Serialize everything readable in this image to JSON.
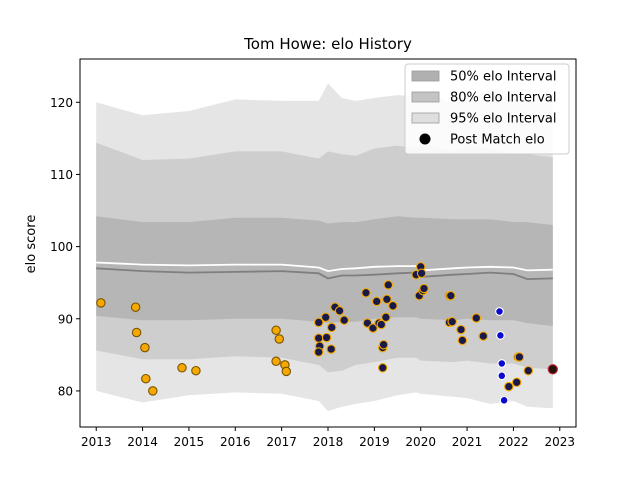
{
  "chart_data": {
    "type": "scatter",
    "title": "Tom Howe: elo History",
    "xlabel": "",
    "ylabel": "elo score",
    "xlim": [
      2012.65,
      2023.35
    ],
    "ylim": [
      75,
      126
    ],
    "x_ticks": [
      {
        "value": 2013,
        "label": "2013"
      },
      {
        "value": 2014,
        "label": "2014"
      },
      {
        "value": 2015,
        "label": "2015"
      },
      {
        "value": 2016,
        "label": "2016"
      },
      {
        "value": 2017,
        "label": "2017"
      },
      {
        "value": 2018,
        "label": "2018"
      },
      {
        "value": 2019,
        "label": "2019"
      },
      {
        "value": 2020,
        "label": "2020"
      },
      {
        "value": 2021,
        "label": "2021"
      },
      {
        "value": 2022,
        "label": "2022"
      },
      {
        "value": 2023,
        "label": "2023"
      }
    ],
    "y_ticks": [
      {
        "value": 80,
        "label": "80"
      },
      {
        "value": 90,
        "label": "90"
      },
      {
        "value": 100,
        "label": "100"
      },
      {
        "value": 110,
        "label": "110"
      },
      {
        "value": 120,
        "label": "120"
      }
    ],
    "grid": false,
    "legend": {
      "position": "top-right",
      "entries": [
        {
          "label": "50% elo Interval",
          "kind": "patch",
          "color": "#b0b0b0"
        },
        {
          "label": "80% elo Interval",
          "kind": "patch",
          "color": "#c4c4c4"
        },
        {
          "label": "95% elo Interval",
          "kind": "patch",
          "color": "#dfdfdf"
        },
        {
          "label": "Post Match elo",
          "kind": "marker",
          "color": "#000000"
        }
      ]
    },
    "colors": {
      "band_95": "#e5e5e5",
      "band_80": "#cecece",
      "band_50": "#b6b6b6",
      "median_line": "#7f7f7f",
      "mean_line": "#ffffff",
      "point_fill_a": "#f5a800",
      "point_fill_b": "#1a1a4a",
      "point_edge": "#c98a00",
      "point_blue": "#0a0ad0",
      "point_last": "#c0282e"
    },
    "bands": {
      "x": [
        2013.0,
        2014.0,
        2015.0,
        2016.0,
        2017.0,
        2017.8,
        2018.0,
        2018.3,
        2018.6,
        2019.0,
        2019.5,
        2019.9,
        2020.0,
        2020.7,
        2021.0,
        2021.5,
        2022.0,
        2022.3,
        2022.85
      ],
      "p95_upper": [
        120.0,
        118.2,
        118.8,
        120.4,
        120.2,
        120.2,
        122.6,
        120.6,
        120.2,
        120.6,
        121.0,
        120.8,
        121.6,
        119.8,
        120.8,
        121.4,
        120.6,
        120.4,
        121.2
      ],
      "p95_lower": [
        80.0,
        78.4,
        79.4,
        79.8,
        79.6,
        78.6,
        77.2,
        77.8,
        78.2,
        78.6,
        79.4,
        79.8,
        79.6,
        79.2,
        79.0,
        78.2,
        78.6,
        77.8,
        77.6
      ],
      "p80_upper": [
        114.4,
        112.0,
        112.2,
        113.2,
        113.2,
        112.2,
        113.2,
        112.8,
        112.6,
        113.6,
        114.0,
        113.6,
        114.2,
        113.2,
        113.8,
        113.6,
        112.8,
        112.8,
        112.4
      ],
      "p80_lower": [
        85.6,
        84.4,
        84.4,
        84.8,
        84.6,
        83.6,
        82.6,
        82.8,
        83.6,
        84.0,
        84.6,
        84.6,
        84.2,
        84.0,
        84.2,
        83.8,
        83.8,
        83.2,
        83.0
      ],
      "p50_upper": [
        104.2,
        103.4,
        103.4,
        104.0,
        104.0,
        103.6,
        103.2,
        103.4,
        103.4,
        103.8,
        104.2,
        104.0,
        104.0,
        103.8,
        103.8,
        103.8,
        103.4,
        103.4,
        103.0
      ],
      "p50_lower": [
        90.4,
        89.8,
        89.8,
        90.0,
        90.0,
        89.6,
        89.4,
        89.6,
        89.6,
        90.0,
        90.2,
        90.2,
        90.0,
        89.8,
        90.0,
        89.8,
        89.8,
        89.4,
        89.0
      ],
      "median": [
        97.0,
        96.6,
        96.4,
        96.5,
        96.6,
        96.3,
        95.6,
        96.0,
        96.0,
        96.1,
        96.3,
        96.4,
        95.8,
        96.1,
        96.2,
        96.4,
        96.2,
        95.5,
        95.6
      ],
      "mean": [
        97.8,
        97.5,
        97.4,
        97.5,
        97.5,
        97.1,
        96.6,
        96.9,
        97.0,
        97.2,
        97.3,
        97.3,
        96.7,
        97.0,
        97.1,
        97.2,
        97.1,
        96.7,
        96.8
      ]
    },
    "points": [
      {
        "x": 2013.1,
        "y": 92.2,
        "group": "a"
      },
      {
        "x": 2013.85,
        "y": 91.6,
        "group": "a"
      },
      {
        "x": 2013.87,
        "y": 88.1,
        "group": "a"
      },
      {
        "x": 2014.05,
        "y": 86.0,
        "group": "a"
      },
      {
        "x": 2014.07,
        "y": 81.7,
        "group": "a"
      },
      {
        "x": 2014.22,
        "y": 80.0,
        "group": "a"
      },
      {
        "x": 2014.85,
        "y": 83.2,
        "group": "a"
      },
      {
        "x": 2015.15,
        "y": 82.8,
        "group": "a"
      },
      {
        "x": 2016.88,
        "y": 88.4,
        "group": "a"
      },
      {
        "x": 2016.95,
        "y": 87.2,
        "group": "a"
      },
      {
        "x": 2016.88,
        "y": 84.1,
        "group": "a"
      },
      {
        "x": 2017.07,
        "y": 83.6,
        "group": "a"
      },
      {
        "x": 2017.1,
        "y": 82.7,
        "group": "a"
      },
      {
        "x": 2017.8,
        "y": 89.5,
        "group": "b"
      },
      {
        "x": 2017.8,
        "y": 87.3,
        "group": "b"
      },
      {
        "x": 2017.82,
        "y": 86.2,
        "group": "b"
      },
      {
        "x": 2017.8,
        "y": 85.4,
        "group": "b"
      },
      {
        "x": 2017.95,
        "y": 90.2,
        "group": "b"
      },
      {
        "x": 2017.97,
        "y": 87.4,
        "group": "b"
      },
      {
        "x": 2018.08,
        "y": 88.8,
        "group": "b"
      },
      {
        "x": 2018.07,
        "y": 85.8,
        "group": "b"
      },
      {
        "x": 2018.15,
        "y": 91.6,
        "group": "b"
      },
      {
        "x": 2018.25,
        "y": 91.1,
        "group": "b"
      },
      {
        "x": 2018.35,
        "y": 89.8,
        "group": "b"
      },
      {
        "x": 2018.82,
        "y": 93.6,
        "group": "b"
      },
      {
        "x": 2018.85,
        "y": 89.4,
        "group": "b"
      },
      {
        "x": 2018.97,
        "y": 88.7,
        "group": "b"
      },
      {
        "x": 2019.05,
        "y": 92.4,
        "group": "b"
      },
      {
        "x": 2019.1,
        "y": 89.4,
        "group": "b"
      },
      {
        "x": 2019.15,
        "y": 89.2,
        "group": "b"
      },
      {
        "x": 2019.18,
        "y": 86.0,
        "group": "b"
      },
      {
        "x": 2019.2,
        "y": 86.4,
        "group": "b"
      },
      {
        "x": 2019.18,
        "y": 83.2,
        "group": "b"
      },
      {
        "x": 2019.25,
        "y": 90.2,
        "group": "b"
      },
      {
        "x": 2019.27,
        "y": 92.7,
        "group": "b"
      },
      {
        "x": 2019.3,
        "y": 94.7,
        "group": "b"
      },
      {
        "x": 2019.4,
        "y": 91.8,
        "group": "b"
      },
      {
        "x": 2019.9,
        "y": 96.1,
        "group": "b"
      },
      {
        "x": 2019.97,
        "y": 93.2,
        "group": "b"
      },
      {
        "x": 2020.0,
        "y": 97.2,
        "group": "b"
      },
      {
        "x": 2020.02,
        "y": 96.3,
        "group": "b"
      },
      {
        "x": 2020.05,
        "y": 93.9,
        "group": "b"
      },
      {
        "x": 2020.07,
        "y": 94.2,
        "group": "b"
      },
      {
        "x": 2020.62,
        "y": 93.2,
        "group": "b"
      },
      {
        "x": 2020.65,
        "y": 93.2,
        "group": "b"
      },
      {
        "x": 2020.62,
        "y": 89.5,
        "group": "b"
      },
      {
        "x": 2020.68,
        "y": 89.6,
        "group": "b"
      },
      {
        "x": 2020.87,
        "y": 88.5,
        "group": "b"
      },
      {
        "x": 2020.9,
        "y": 87.0,
        "group": "b"
      },
      {
        "x": 2021.2,
        "y": 90.1,
        "group": "b"
      },
      {
        "x": 2021.35,
        "y": 87.6,
        "group": "b"
      },
      {
        "x": 2021.7,
        "y": 91.0,
        "group": "blue"
      },
      {
        "x": 2021.72,
        "y": 87.7,
        "group": "blue"
      },
      {
        "x": 2021.75,
        "y": 83.8,
        "group": "blue"
      },
      {
        "x": 2021.75,
        "y": 82.1,
        "group": "blue"
      },
      {
        "x": 2021.8,
        "y": 78.7,
        "group": "blue"
      },
      {
        "x": 2021.9,
        "y": 80.6,
        "group": "b"
      },
      {
        "x": 2022.07,
        "y": 81.2,
        "group": "b"
      },
      {
        "x": 2022.1,
        "y": 84.7,
        "group": "b"
      },
      {
        "x": 2022.13,
        "y": 84.7,
        "group": "b"
      },
      {
        "x": 2022.32,
        "y": 82.8,
        "group": "b"
      },
      {
        "x": 2022.85,
        "y": 83.0,
        "group": "last"
      }
    ]
  }
}
